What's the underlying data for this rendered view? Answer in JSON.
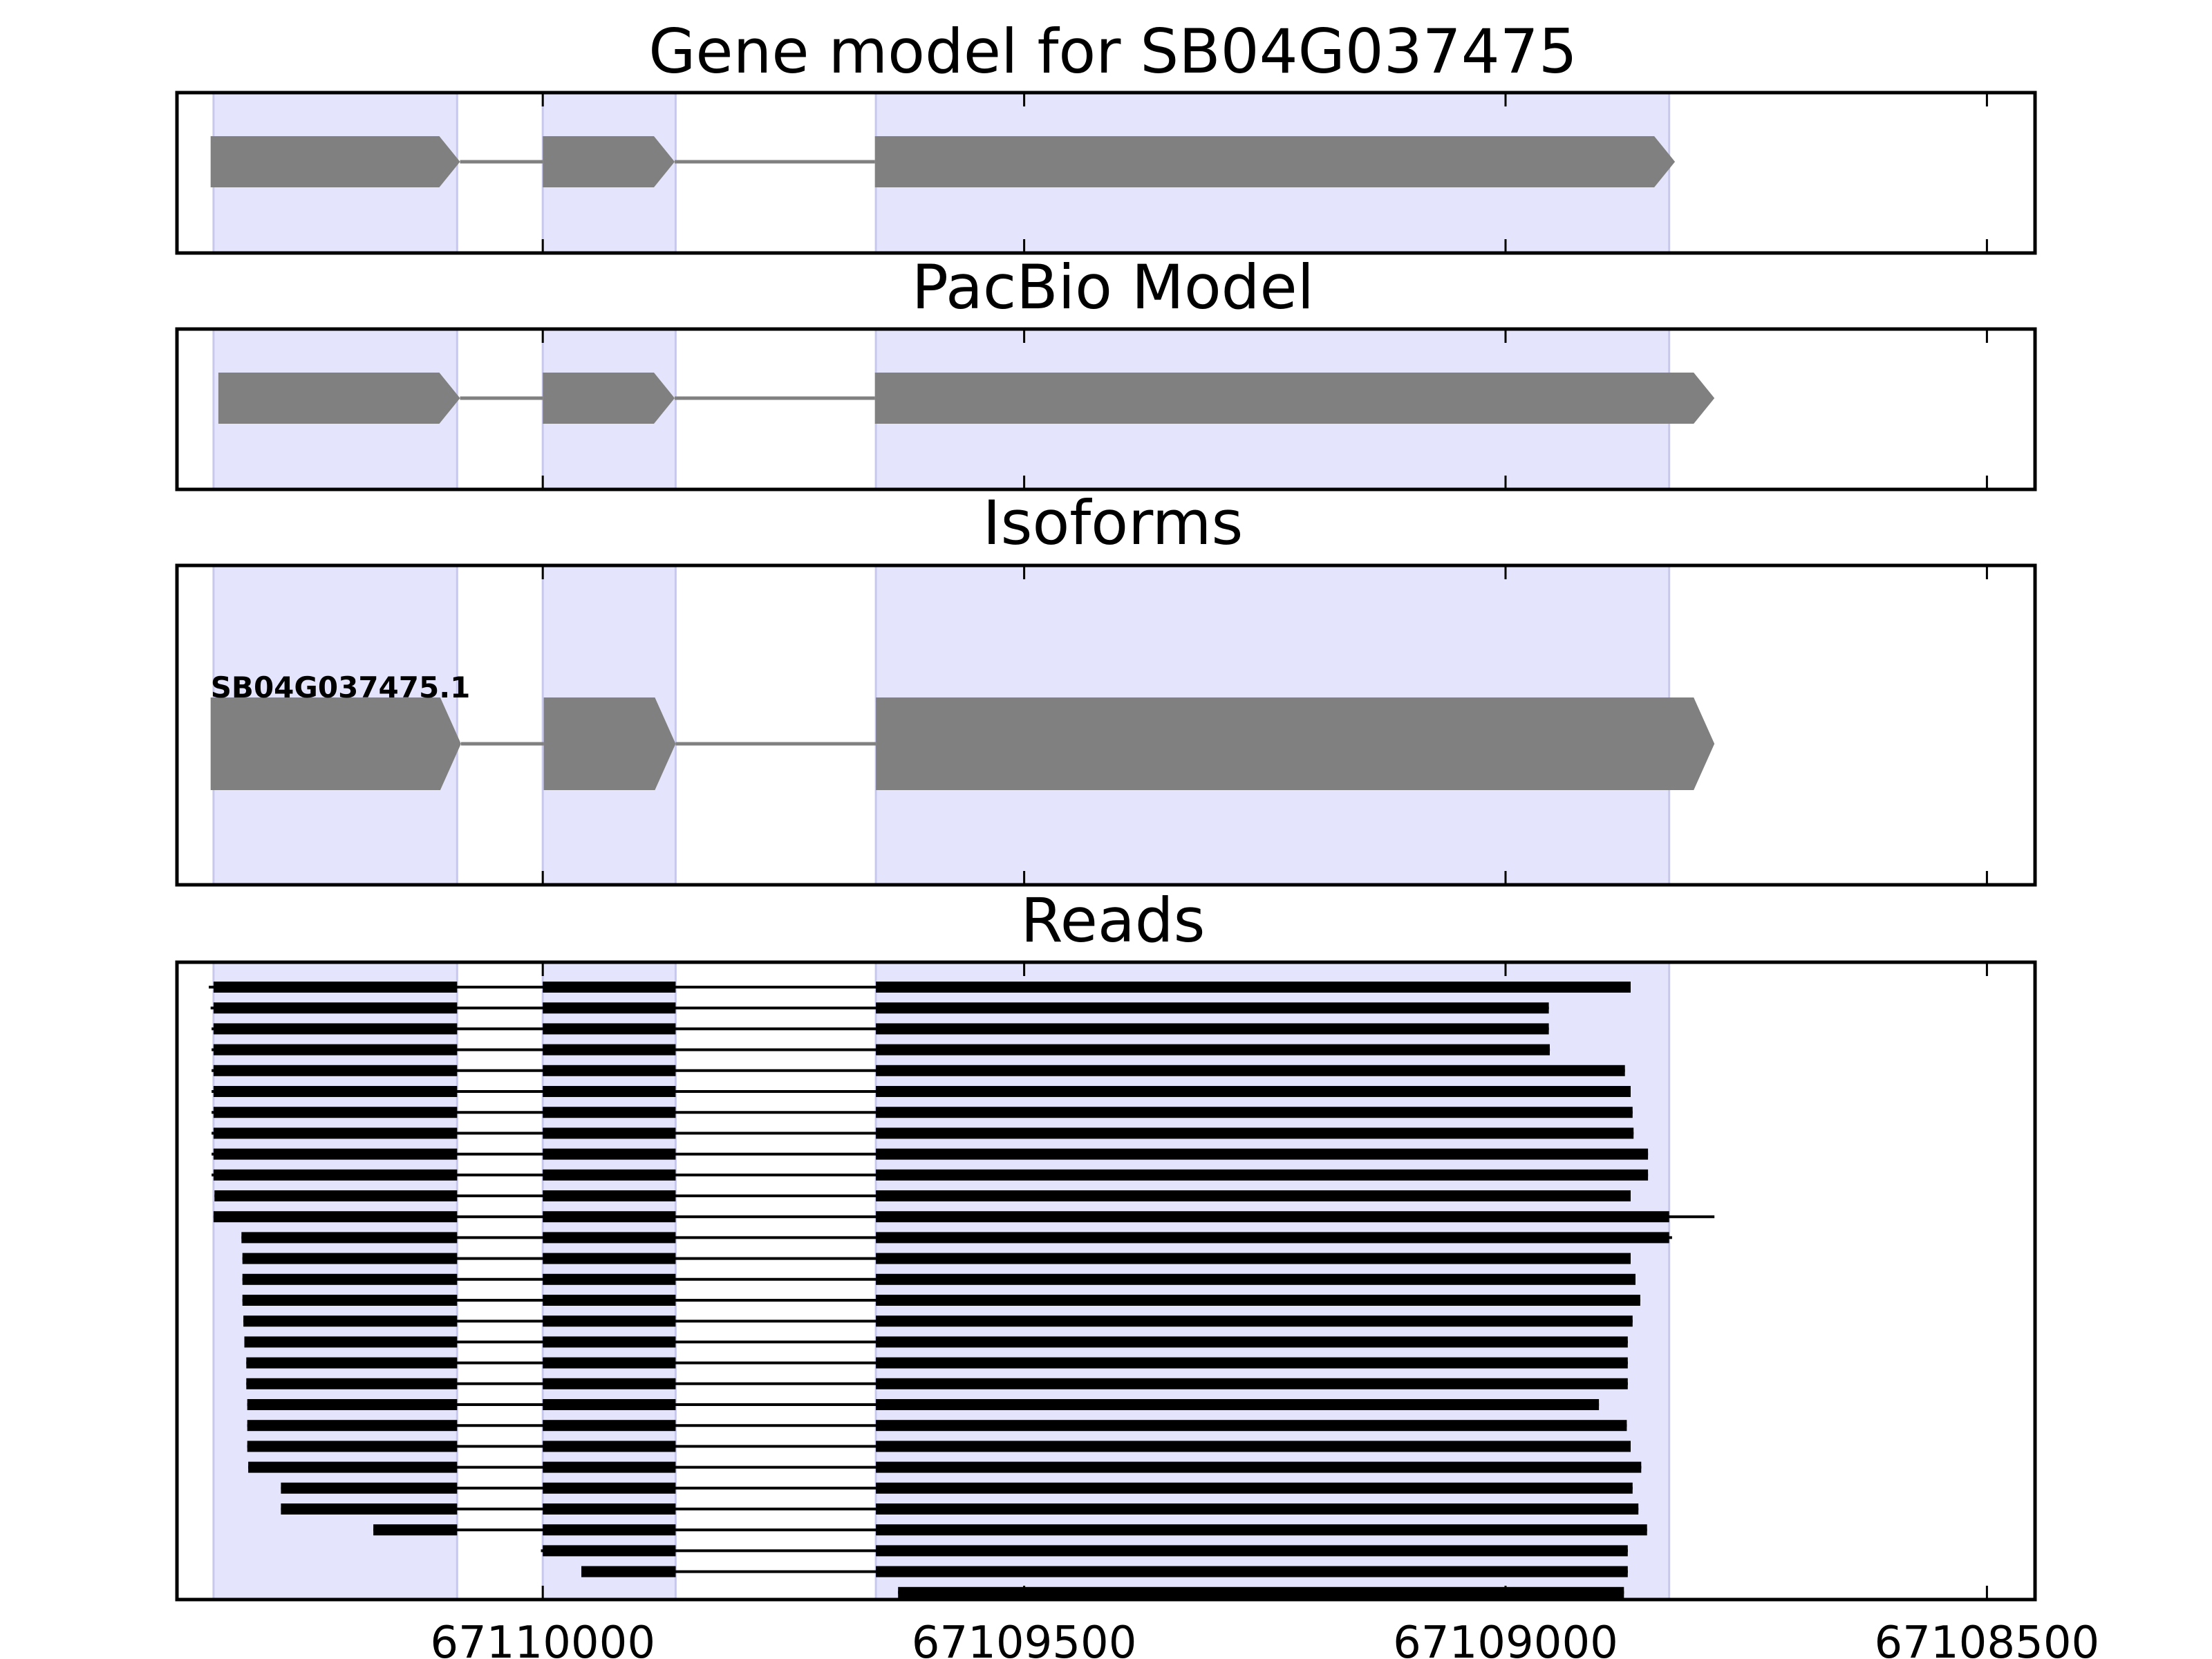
{
  "colors": {
    "exon_shading": "#e4e4fc",
    "exon_shading_edge": "#c8c8ec",
    "gene_feature": "#808080",
    "intron_line": "#808080",
    "read_block": "#000000",
    "read_line": "#000000",
    "frame": "#000000"
  },
  "chart_data": {
    "type": "gene-structure tracks",
    "x_axis": {
      "range": [
        67110380,
        67108450
      ],
      "reversed": true,
      "ticks": [
        67110000,
        67109500,
        67109000,
        67108500
      ],
      "tick_labels": [
        "67110000",
        "67109500",
        "67109000",
        "67108500"
      ]
    },
    "exon_regions": [
      [
        67110342,
        67110089
      ],
      [
        67110000,
        67109862
      ],
      [
        67109654,
        67108830
      ]
    ],
    "panels": [
      {
        "title": "Gene model for SB04G037475",
        "features": [
          [
            67110345,
            67110086
          ],
          [
            67110000,
            67109863
          ],
          [
            67109655,
            67108824
          ]
        ],
        "strand": "-"
      },
      {
        "title": "PacBio Model",
        "features": [
          [
            67110337,
            67110086
          ],
          [
            67110000,
            67109863
          ],
          [
            67109655,
            67108783
          ]
        ],
        "strand": "-"
      },
      {
        "title": "Isoforms",
        "isoforms": [
          {
            "label": "SB04G037475.1",
            "exons": [
              [
                67110345,
                67110085
              ],
              [
                67109999,
                67109862
              ],
              [
                67109654,
                67108783
              ]
            ]
          }
        ]
      },
      {
        "title": "Reads",
        "reads": [
          [
            67110347,
            67108870
          ],
          [
            67110345,
            67108955
          ],
          [
            67110344,
            67108955
          ],
          [
            67110344,
            67108954
          ],
          [
            67110344,
            67108876
          ],
          [
            67110344,
            67108870
          ],
          [
            67110344,
            67108868
          ],
          [
            67110344,
            67108867
          ],
          [
            67110344,
            67108852
          ],
          [
            67110344,
            67108852
          ],
          [
            67110341,
            67108870
          ],
          [
            67110342,
            67108783
          ],
          [
            67110313,
            67108827
          ],
          [
            67110312,
            67108870
          ],
          [
            67110312,
            67108865
          ],
          [
            67110312,
            67108860
          ],
          [
            67110311,
            67108868
          ],
          [
            67110310,
            67108873
          ],
          [
            67110308,
            67108873
          ],
          [
            67110308,
            67108873
          ],
          [
            67110307,
            67108903
          ],
          [
            67110307,
            67108874
          ],
          [
            67110307,
            67108870
          ],
          [
            67110306,
            67108859
          ],
          [
            67110272,
            67108868
          ],
          [
            67110272,
            67108862
          ],
          [
            67110176,
            67108853
          ],
          [
            67110002,
            67108873
          ],
          [
            67109960,
            67108873
          ],
          [
            67109631,
            67108877
          ]
        ]
      }
    ]
  }
}
